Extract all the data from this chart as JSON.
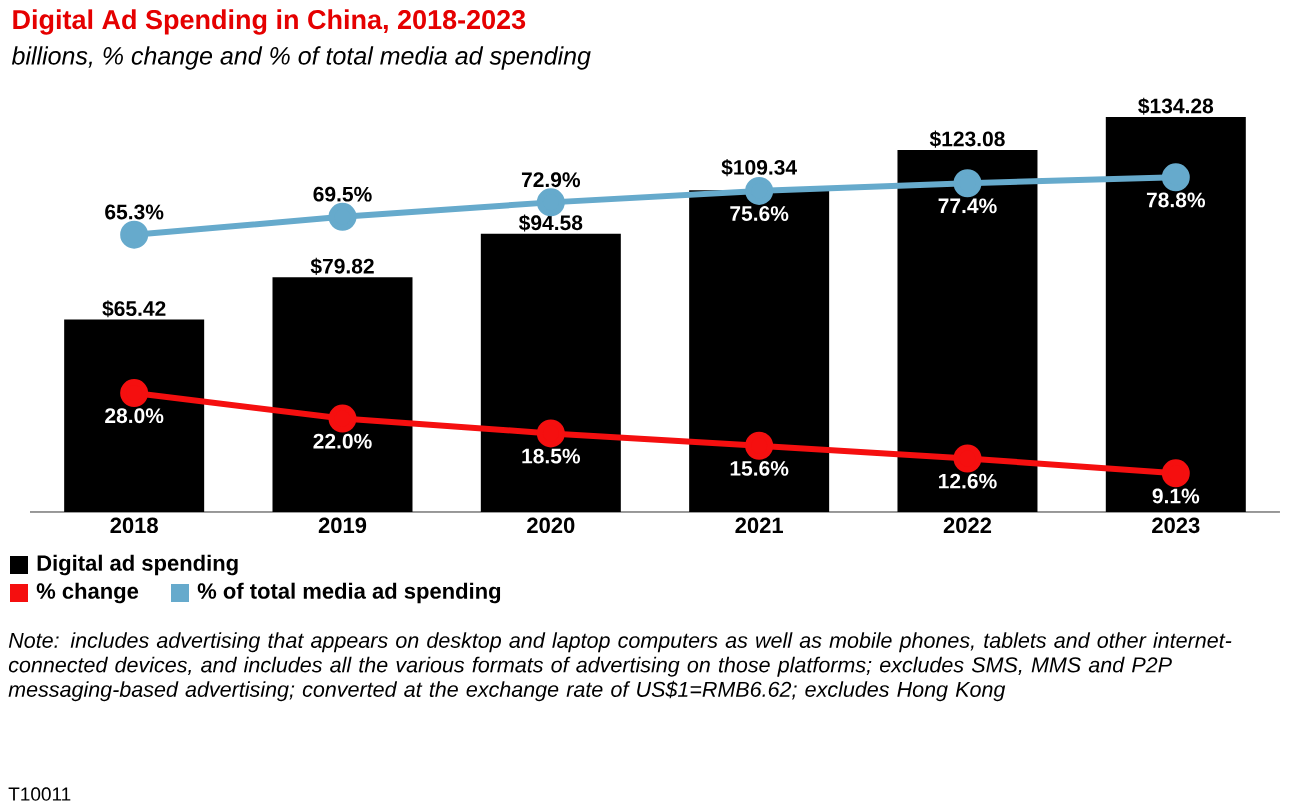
{
  "chart_data": {
    "type": "bar",
    "title": "Digital Ad Spending in China, 2018-2023",
    "subtitle": "billions, % change and % of total media ad spending",
    "categories": [
      "2018",
      "2019",
      "2020",
      "2021",
      "2022",
      "2023"
    ],
    "series": [
      {
        "name": "Digital ad spending",
        "color": "#000000",
        "values": [
          65.42,
          79.82,
          94.58,
          109.34,
          123.08,
          134.28
        ],
        "value_labels": [
          "$65.42",
          "$79.82",
          "$94.58",
          "$109.34",
          "$123.08",
          "$134.28"
        ]
      },
      {
        "name": "% change",
        "type": "line",
        "axis": "y2",
        "color": "#f50f0f",
        "values": [
          28.0,
          22.0,
          18.5,
          15.6,
          12.6,
          9.1
        ],
        "value_labels": [
          "28.0%",
          "22.0%",
          "18.5%",
          "15.6%",
          "12.6%",
          "9.1%"
        ]
      },
      {
        "name": "% of total media ad spending",
        "type": "line",
        "axis": "y2",
        "color": "#66aacc",
        "values": [
          65.3,
          69.5,
          72.9,
          75.6,
          77.4,
          78.8
        ],
        "value_labels": [
          "65.3%",
          "69.5%",
          "72.9%",
          "75.6%",
          "77.4%",
          "78.8%"
        ]
      }
    ],
    "tick_labels": "x",
    "legend": "bottom left",
    "marker": "circle",
    "annotations": [
      "Note: includes advertising that appears on desktop and laptop computers as well as mobile phones, tablets and other internet-connected devices, and includes all the various formats of advertising on those platforms; excludes SMS, MMS and P2P messaging-based advertising; converted at the exchange rate of US$1=RMB6.62; excludes Hong Kong",
      "T10011"
    ]
  }
}
